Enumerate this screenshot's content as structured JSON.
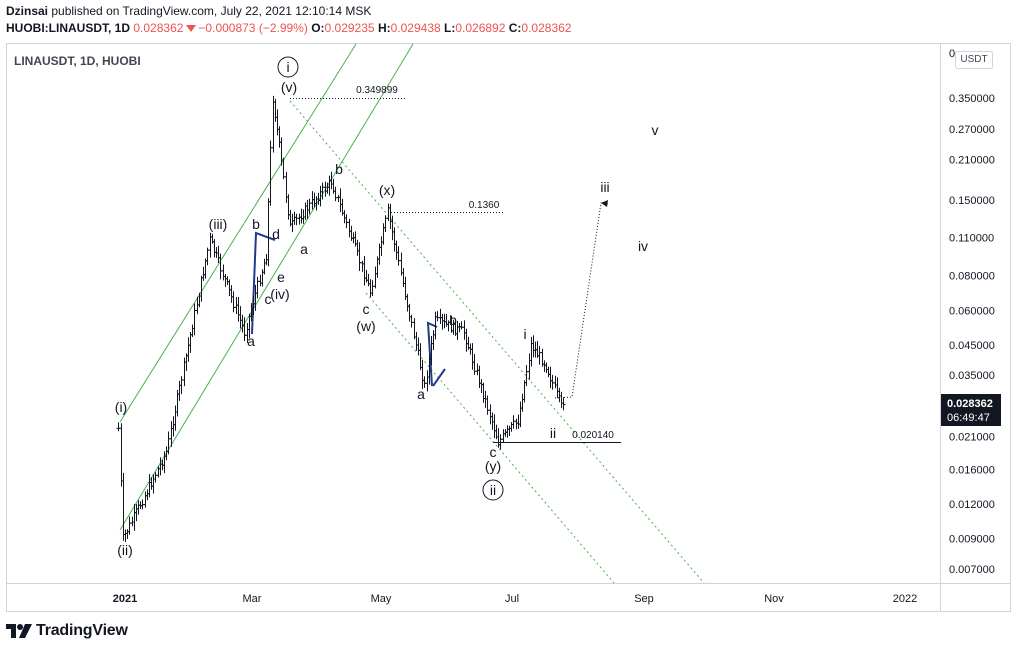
{
  "header": {
    "author": "Dzinsai",
    "published_text": "published on TradingView.com, July 22, 2021 12:10:14 MSK",
    "symbol": "HUOBI:LINAUSDT, 1D",
    "last": "0.028362",
    "change": "−0.000873 (−2.99%)",
    "o_label": "O:",
    "o_value": "0.029235",
    "h_label": "H:",
    "h_value": "0.029438",
    "l_label": "L:",
    "l_value": "0.026892",
    "c_label": "C:",
    "c_value": "0.028362"
  },
  "legend_title": "LINAUSDT, 1D, HUOBI",
  "currency_button": "USDT",
  "footer": {
    "brand": "TradingView"
  },
  "price_tag": {
    "price": "0.028362",
    "countdown": "06:49:47"
  },
  "colors": {
    "channel": "#4caf50",
    "dotted_channel": "#4caf50",
    "accent_red": "#ef5350",
    "wave_line": "#1e3a8a",
    "price_tag": "#131722"
  },
  "chart_data": {
    "type": "ohlc",
    "scale": "log",
    "grid": false,
    "ylim": [
      0.0062,
      0.49
    ],
    "x_ticks": [
      "2021",
      "Mar",
      "May",
      "Jul",
      "Sep",
      "Nov",
      "2022"
    ],
    "y_ticks": [
      "0",
      "0.350000",
      "0.270000",
      "0.210000",
      "0.150000",
      "0.110000",
      "0.080000",
      "0.060000",
      "0.045000",
      "0.035000",
      "0.021000",
      "0.016000",
      "0.012000",
      "0.009000",
      "0.007000"
    ],
    "y_tick_values": [
      null,
      0.35,
      0.27,
      0.21,
      0.15,
      0.11,
      0.08,
      0.06,
      0.045,
      0.035,
      0.021,
      0.016,
      0.012,
      0.009,
      0.007
    ],
    "price_key_points": [
      {
        "date": "2020-12-29",
        "price": 0.0225
      },
      {
        "date": "2020-12-31",
        "price": 0.009
      },
      {
        "date": "2021-01-20",
        "price": 0.0185
      },
      {
        "date": "2021-02-09",
        "price": 0.108
      },
      {
        "date": "2021-02-25",
        "price": 0.05
      },
      {
        "date": "2021-03-07",
        "price": 0.095
      },
      {
        "date": "2021-03-10",
        "price": 0.3499
      },
      {
        "date": "2021-03-18",
        "price": 0.12
      },
      {
        "date": "2021-04-06",
        "price": 0.175
      },
      {
        "date": "2021-04-24",
        "price": 0.07
      },
      {
        "date": "2021-05-02",
        "price": 0.136
      },
      {
        "date": "2021-05-19",
        "price": 0.032
      },
      {
        "date": "2021-05-24",
        "price": 0.055
      },
      {
        "date": "2021-06-06",
        "price": 0.05
      },
      {
        "date": "2021-06-22",
        "price": 0.0201
      },
      {
        "date": "2021-07-01",
        "price": 0.024
      },
      {
        "date": "2021-07-07",
        "price": 0.045
      },
      {
        "date": "2021-07-14",
        "price": 0.038
      },
      {
        "date": "2021-07-21",
        "price": 0.0269
      },
      {
        "date": "2021-07-22",
        "price": 0.028362
      }
    ],
    "levels": [
      {
        "label": "0.349899",
        "value": 0.349899
      },
      {
        "label": "0.1360",
        "value": 0.136
      },
      {
        "label": "0.020140",
        "value": 0.02014
      }
    ],
    "wave_labels": [
      {
        "text": "i",
        "circled": true
      },
      {
        "text": "(v)"
      },
      {
        "text": "(iii)"
      },
      {
        "text": "b"
      },
      {
        "text": "d"
      },
      {
        "text": "e"
      },
      {
        "text": "c"
      },
      {
        "text": "(iv)"
      },
      {
        "text": "a"
      },
      {
        "text": "(i)"
      },
      {
        "text": "(ii)"
      },
      {
        "text": "a"
      },
      {
        "text": "b"
      },
      {
        "text": "(x)"
      },
      {
        "text": "c"
      },
      {
        "text": "(w)"
      },
      {
        "text": "b"
      },
      {
        "text": "a"
      },
      {
        "text": "c"
      },
      {
        "text": "(y)"
      },
      {
        "text": "ii",
        "circled": true
      },
      {
        "text": "i"
      },
      {
        "text": "ii"
      },
      {
        "text": "iii"
      },
      {
        "text": "iv"
      },
      {
        "text": "v"
      }
    ]
  }
}
